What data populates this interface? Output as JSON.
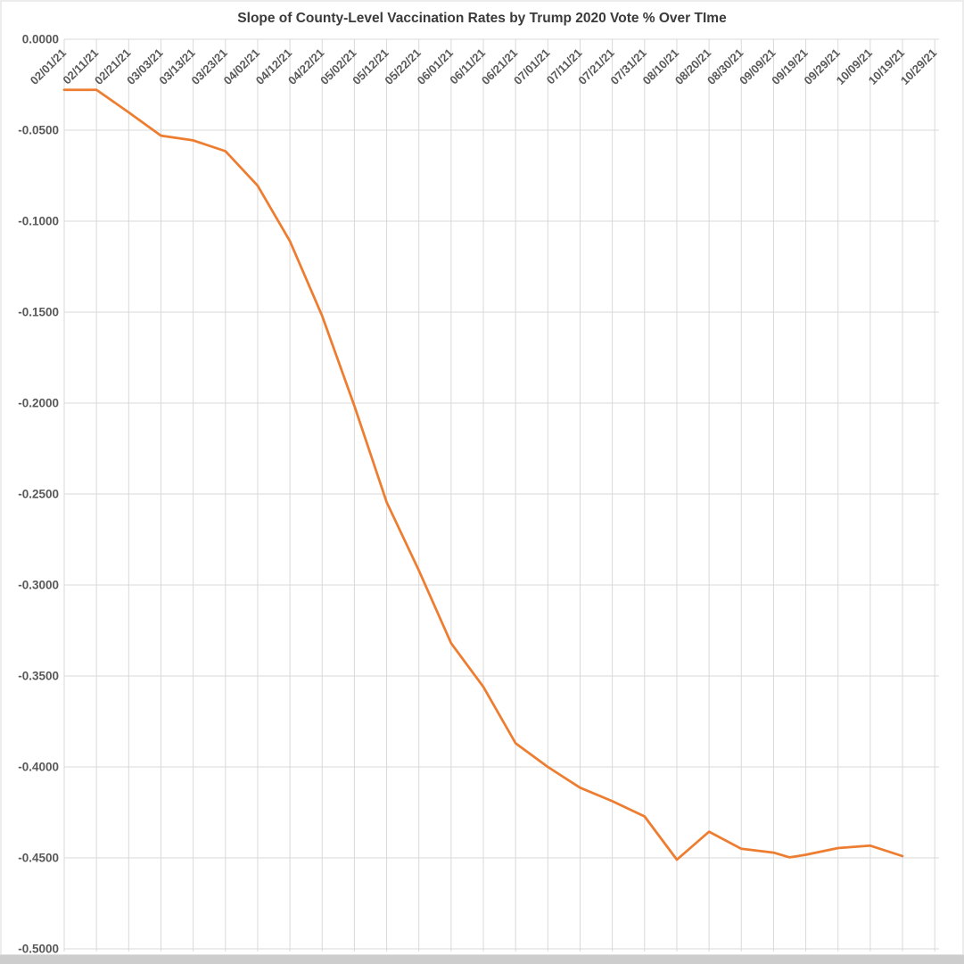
{
  "window": {
    "background": "#ffffff",
    "border_color": "#ececec",
    "bottom_bar_color": "#cdcdcd"
  },
  "chart_data": {
    "type": "line",
    "title": "Slope of County-Level Vaccination Rates by Trump 2020 Vote % Over TIme",
    "title_color": "#3b3b3b",
    "axis_label_color": "#595959",
    "gridline_color": "#d9d9d9",
    "line_color": "#ed7d31",
    "legend": "none",
    "grid": true,
    "ylim": [
      -0.5,
      0
    ],
    "y_tick_step": 0.05,
    "y_tick_labels": [
      "0.0000",
      "-0.0500",
      "-0.1000",
      "-0.1500",
      "-0.2000",
      "-0.2500",
      "-0.3000",
      "-0.3500",
      "-0.4000",
      "-0.4500",
      "-0.5000"
    ],
    "x_tick_labels": [
      "02/01/21",
      "02/11/21",
      "02/21/21",
      "03/03/21",
      "03/13/21",
      "03/23/21",
      "04/02/21",
      "04/12/21",
      "04/22/21",
      "05/02/21",
      "05/12/21",
      "05/22/21",
      "06/01/21",
      "06/11/21",
      "06/21/21",
      "07/01/21",
      "07/11/21",
      "07/21/21",
      "07/31/21",
      "08/10/21",
      "08/20/21",
      "08/30/21",
      "09/09/21",
      "09/19/21",
      "09/29/21",
      "10/09/21",
      "10/19/21",
      "10/29/21"
    ],
    "series": [
      {
        "color": "#ed7d31",
        "points": [
          {
            "date": "02/01/21",
            "value": -0.0278
          },
          {
            "date": "02/11/21",
            "value": -0.0278
          },
          {
            "date": "02/21/21",
            "value": -0.0402
          },
          {
            "date": "03/03/21",
            "value": -0.053
          },
          {
            "date": "03/13/21",
            "value": -0.0556
          },
          {
            "date": "03/23/21",
            "value": -0.0615
          },
          {
            "date": "04/02/21",
            "value": -0.0805
          },
          {
            "date": "04/12/21",
            "value": -0.111
          },
          {
            "date": "04/22/21",
            "value": -0.152
          },
          {
            "date": "05/02/21",
            "value": -0.2015
          },
          {
            "date": "05/12/21",
            "value": -0.2545
          },
          {
            "date": "05/22/21",
            "value": -0.292
          },
          {
            "date": "06/01/21",
            "value": -0.332
          },
          {
            "date": "06/11/21",
            "value": -0.356
          },
          {
            "date": "06/21/21",
            "value": -0.387
          },
          {
            "date": "07/01/21",
            "value": -0.4
          },
          {
            "date": "07/11/21",
            "value": -0.4114
          },
          {
            "date": "07/21/21",
            "value": -0.4188
          },
          {
            "date": "07/31/21",
            "value": -0.4272
          },
          {
            "date": "08/10/21",
            "value": -0.451
          },
          {
            "date": "08/20/21",
            "value": -0.4356
          },
          {
            "date": "08/30/21",
            "value": -0.445
          },
          {
            "date": "09/09/21",
            "value": -0.4471
          },
          {
            "date": "09/14/21",
            "value": -0.4497
          },
          {
            "date": "09/19/21",
            "value": -0.4483
          },
          {
            "date": "09/29/21",
            "value": -0.4446
          },
          {
            "date": "10/09/21",
            "value": -0.4433
          },
          {
            "date": "10/19/21",
            "value": -0.449
          }
        ]
      }
    ]
  }
}
